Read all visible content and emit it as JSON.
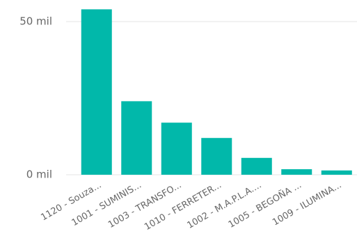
{
  "chart_data": {
    "type": "bar",
    "categories": [
      "1120 - Souza...",
      "1001 - SUMINIS...",
      "1003 - TRANSFO...",
      "1010 - FERRETER...",
      "1002 - M.A.P.L.A....",
      "1005 - BEGOÑA ...",
      "1009 - ILUMINA..."
    ],
    "values": [
      54000,
      24000,
      17000,
      12000,
      5500,
      1800,
      1400
    ],
    "color": "#01b8aa",
    "ylim": [
      0,
      55000
    ],
    "yticks": [
      {
        "value": 0,
        "label": "0 mil"
      },
      {
        "value": 50000,
        "label": "50 mil"
      }
    ],
    "grid": true
  }
}
